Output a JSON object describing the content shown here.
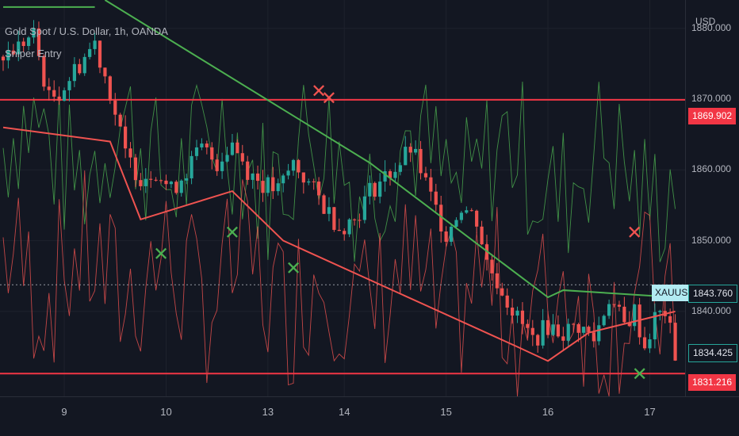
{
  "header": {
    "symbol_description": "Gold Spot / U.S. Dollar, 1h, OANDA",
    "indicator_name": "Sniper Entry",
    "currency": "USD"
  },
  "price_tags": {
    "upper_level": "1869.902",
    "symbol": "XAUUSD",
    "symbol_price": "1843.760",
    "current": "1834.425",
    "lower_level": "1831.216"
  },
  "colors": {
    "background": "#131722",
    "up": "#26a69a",
    "down": "#ef5350",
    "trend_green": "#4caf50",
    "level_red": "#f23645",
    "tag_teal": "#26a69a"
  },
  "chart_data": {
    "type": "candlestick",
    "title": "Gold Spot / U.S. Dollar, 1h, OANDA",
    "ylabel": "USD",
    "x_ticks": [
      "9",
      "10",
      "13",
      "14",
      "15",
      "16",
      "17"
    ],
    "y_ticks": [
      1880,
      1870,
      1860,
      1850,
      1840
    ],
    "ylim": [
      1828,
      1884
    ],
    "horizontal_levels": [
      1869.902,
      1831.216
    ],
    "last_price": 1834.425,
    "xauusd_marker": 1843.76,
    "close_path": [
      [
        0,
        1876
      ],
      [
        6,
        1879
      ],
      [
        9,
        1870
      ],
      [
        11,
        1871
      ],
      [
        14,
        1874
      ],
      [
        18,
        1878
      ],
      [
        21,
        1871
      ],
      [
        24,
        1862
      ],
      [
        27,
        1859
      ],
      [
        30,
        1860
      ],
      [
        33,
        1857
      ],
      [
        36,
        1860
      ],
      [
        39,
        1863
      ],
      [
        42,
        1861
      ],
      [
        45,
        1864
      ],
      [
        48,
        1860
      ],
      [
        51,
        1858
      ],
      [
        54,
        1857
      ],
      [
        57,
        1861
      ],
      [
        60,
        1858
      ],
      [
        63,
        1855
      ],
      [
        66,
        1852
      ],
      [
        69,
        1853
      ],
      [
        72,
        1857
      ],
      [
        75,
        1859
      ],
      [
        78,
        1861
      ],
      [
        80,
        1863
      ],
      [
        82,
        1860
      ],
      [
        84,
        1856
      ],
      [
        87,
        1851
      ],
      [
        90,
        1855
      ],
      [
        93,
        1853
      ],
      [
        95,
        1847
      ],
      [
        98,
        1843
      ],
      [
        101,
        1839
      ],
      [
        104,
        1836
      ],
      [
        107,
        1838
      ],
      [
        110,
        1837
      ],
      [
        113,
        1838
      ],
      [
        116,
        1836
      ],
      [
        119,
        1842
      ],
      [
        122,
        1838
      ],
      [
        124,
        1840
      ],
      [
        126,
        1835
      ],
      [
        128,
        1839
      ],
      [
        130,
        1840
      ],
      [
        132,
        1834
      ]
    ],
    "trend_lines_green": [
      [
        [
          0,
          1883
        ],
        [
          18,
          1883
        ]
      ],
      [
        [
          20,
          1884
        ],
        [
          72,
          1861
        ],
        [
          107,
          1842
        ],
        [
          110,
          1843
        ],
        [
          132,
          1842
        ]
      ]
    ],
    "trend_lines_red": [
      [
        [
          0,
          1866
        ],
        [
          21,
          1864
        ],
        [
          27,
          1853
        ],
        [
          45,
          1857
        ],
        [
          55,
          1850
        ],
        [
          101,
          1835
        ],
        [
          107,
          1833
        ],
        [
          115,
          1837
        ],
        [
          132,
          1840
        ]
      ]
    ],
    "markers": [
      {
        "symbol": "✕",
        "index": 31,
        "price": 1848,
        "color": "green"
      },
      {
        "symbol": "✕",
        "index": 45,
        "price": 1851,
        "color": "green"
      },
      {
        "symbol": "✕",
        "index": 57,
        "price": 1846,
        "color": "green"
      },
      {
        "symbol": "✕",
        "index": 62,
        "price": 1871,
        "color": "red"
      },
      {
        "symbol": "✕",
        "index": 64,
        "price": 1870,
        "color": "red"
      },
      {
        "symbol": "✕",
        "index": 124,
        "price": 1851,
        "color": "red"
      },
      {
        "symbol": "✕",
        "index": 125,
        "price": 1831,
        "color": "green"
      }
    ]
  }
}
